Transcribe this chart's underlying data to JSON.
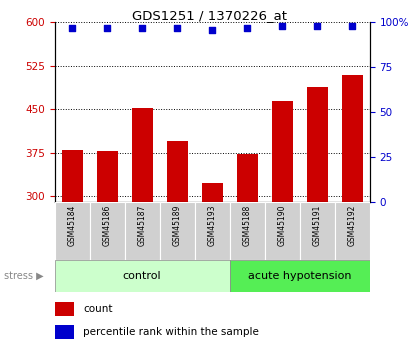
{
  "title": "GDS1251 / 1370226_at",
  "categories": [
    "GSM45184",
    "GSM45186",
    "GSM45187",
    "GSM45189",
    "GSM45193",
    "GSM45188",
    "GSM45190",
    "GSM45191",
    "GSM45192"
  ],
  "bar_values": [
    380,
    377,
    452,
    395,
    323,
    373,
    465,
    488,
    510
  ],
  "percentile_values": [
    97,
    97,
    97,
    97,
    96,
    97,
    98,
    98,
    98
  ],
  "bar_color": "#cc0000",
  "dot_color": "#0000cc",
  "ylim_left": [
    290,
    600
  ],
  "ylim_right": [
    0,
    100
  ],
  "yticks_left": [
    300,
    375,
    450,
    525,
    600
  ],
  "yticks_right": [
    0,
    25,
    50,
    75,
    100
  ],
  "control_label": "control",
  "acute_label": "acute hypotension",
  "stress_label": "stress",
  "legend_count": "count",
  "legend_percentile": "percentile rank within the sample",
  "control_color": "#ccffcc",
  "acute_color": "#55ee55",
  "label_bg_color": "#d0d0d0",
  "left_tick_color": "#cc0000",
  "right_tick_color": "#0000cc",
  "bar_width": 0.6
}
